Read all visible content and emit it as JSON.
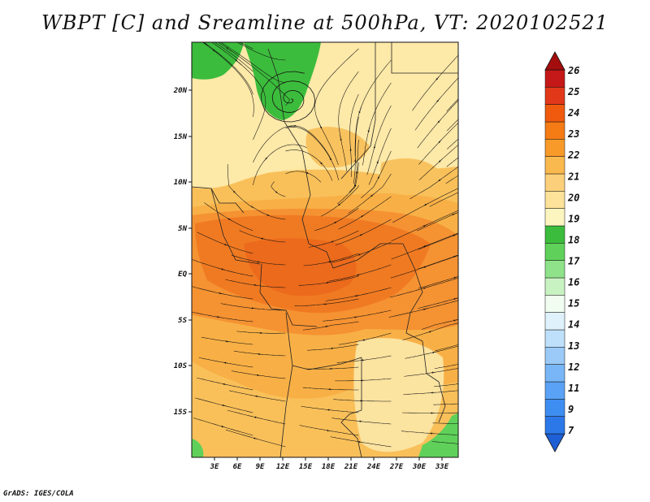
{
  "title": "WBPT [C] and Sreamline at 500hPa, VT: 2020102521",
  "credit": "GrADS: IGES/COLA",
  "map": {
    "lat_labels": [
      "20N",
      "15N",
      "10N",
      "5N",
      "EQ",
      "5S",
      "10S",
      "15S"
    ],
    "lon_labels": [
      "3E",
      "6E",
      "9E",
      "12E",
      "15E",
      "18E",
      "21E",
      "24E",
      "27E",
      "30E",
      "33E"
    ],
    "lon_range": [
      0,
      35
    ],
    "lat_range": [
      -20,
      25
    ]
  },
  "colorbar": {
    "levels": [
      "7",
      "9",
      "11",
      "12",
      "13",
      "14",
      "15",
      "16",
      "17",
      "18",
      "19",
      "20",
      "21",
      "22",
      "23",
      "24",
      "25",
      "26"
    ],
    "colors": [
      "#1f5fd6",
      "#2c78e8",
      "#3e8ef2",
      "#5aa2f5",
      "#78b6f7",
      "#9bcaf8",
      "#bfe0fb",
      "#dff2fb",
      "#f0fdf0",
      "#c9f2c2",
      "#8fe28a",
      "#5fd15a",
      "#3cbc3c",
      "#fdf5c0",
      "#fde39a",
      "#fcd07a",
      "#f9b94e",
      "#f79a2a",
      "#f57b15",
      "#ef5a0e",
      "#e2381a",
      "#c51818",
      "#a40d0d"
    ]
  }
}
